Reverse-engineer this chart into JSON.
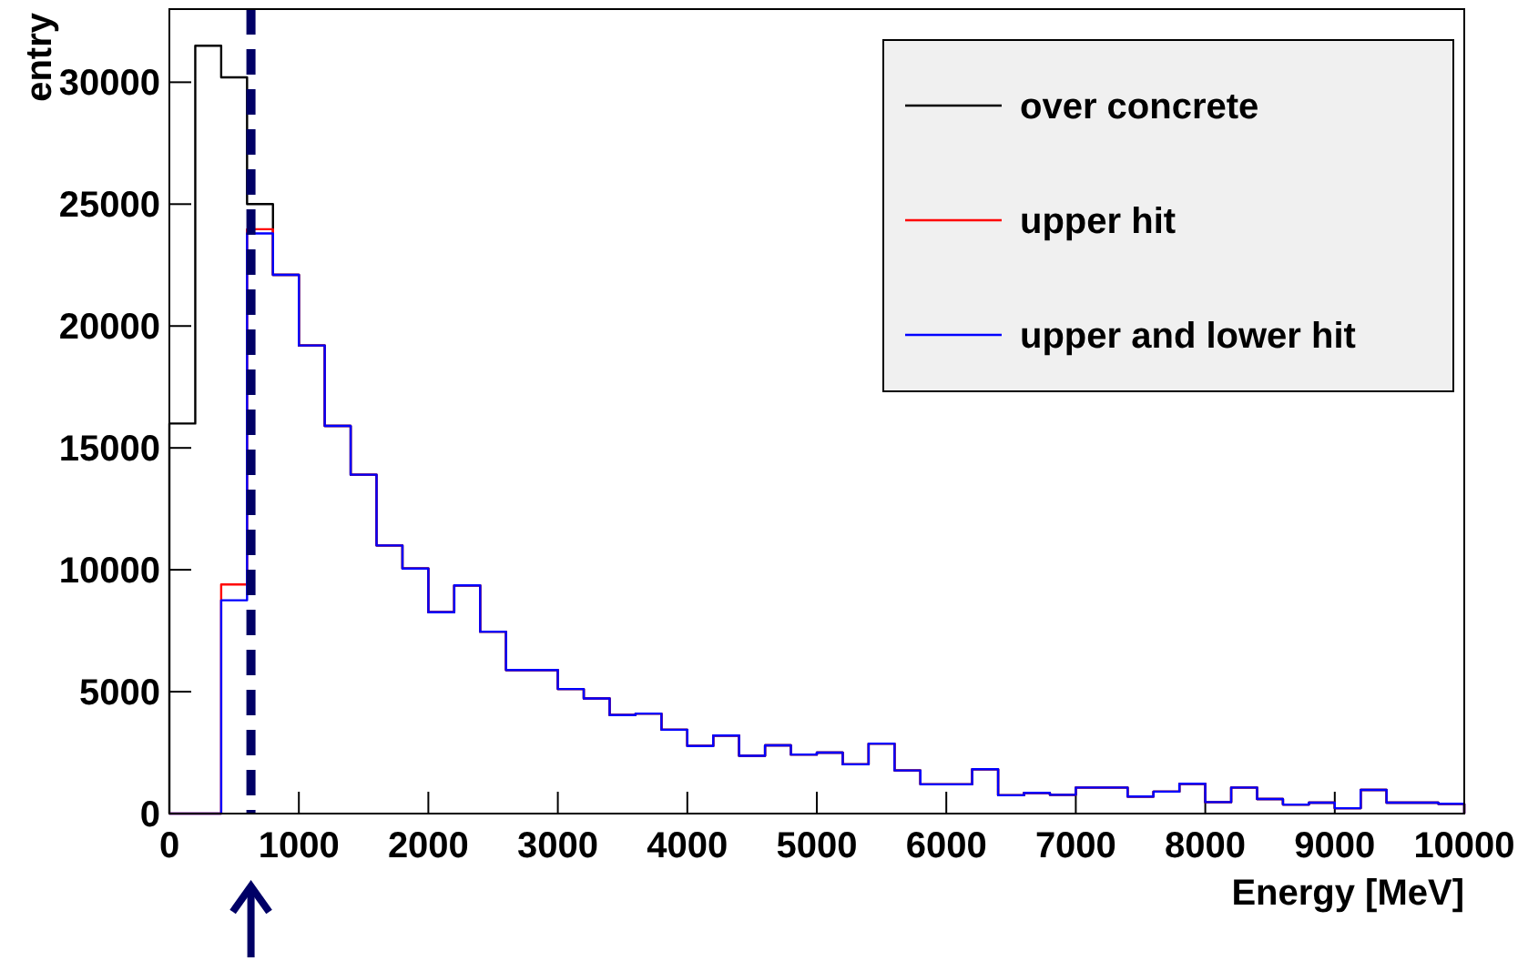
{
  "chart_data": {
    "type": "histogram",
    "xlabel": "Energy [MeV]",
    "ylabel": "entry",
    "bins": [
      0,
      200,
      400,
      600,
      800,
      1000,
      1200,
      1400,
      1600,
      1800,
      2000,
      2200,
      2400,
      2600,
      2800,
      3000,
      3200,
      3400,
      3600,
      3800,
      4000,
      4200,
      4400,
      4600,
      4800,
      5000,
      5200,
      5400,
      5600,
      5800,
      6000,
      6200,
      6400,
      6600,
      6800,
      7000,
      7200,
      7400,
      7600,
      7800,
      8000,
      8200,
      8400,
      8600,
      8800,
      9000,
      9200,
      9400,
      9600,
      9800,
      10000
    ],
    "series": [
      {
        "name": "over concrete",
        "color": "#000000",
        "values": [
          16000,
          31500,
          30200,
          25000,
          22100,
          19200,
          15900,
          13900,
          11000,
          10050,
          8260,
          9360,
          7460,
          5890,
          5890,
          5110,
          4720,
          4040,
          4100,
          3440,
          2770,
          3200,
          2370,
          2800,
          2420,
          2500,
          2020,
          2870,
          1770,
          1200,
          1200,
          1820,
          750,
          850,
          770,
          1070,
          1070,
          700,
          900,
          1220,
          470,
          1070,
          600,
          370,
          450,
          220,
          970,
          450,
          450,
          400
        ]
      },
      {
        "name": "upper hit",
        "color": "#ff0000",
        "values": [
          0,
          0,
          9400,
          23970,
          22100,
          19200,
          15900,
          13900,
          11000,
          10050,
          8260,
          9360,
          7460,
          5890,
          5890,
          5110,
          4720,
          4040,
          4100,
          3440,
          2770,
          3200,
          2370,
          2800,
          2420,
          2500,
          2020,
          2870,
          1770,
          1200,
          1200,
          1820,
          750,
          850,
          770,
          1070,
          1070,
          700,
          900,
          1220,
          470,
          1070,
          600,
          370,
          450,
          220,
          970,
          450,
          450,
          400
        ]
      },
      {
        "name": "upper and lower hit",
        "color": "#0000ff",
        "values": [
          0,
          0,
          8750,
          23800,
          22100,
          19200,
          15900,
          13900,
          11000,
          10050,
          8260,
          9360,
          7460,
          5890,
          5890,
          5110,
          4720,
          4040,
          4100,
          3440,
          2770,
          3200,
          2370,
          2800,
          2420,
          2500,
          2020,
          2870,
          1770,
          1200,
          1200,
          1820,
          750,
          850,
          770,
          1070,
          1070,
          700,
          900,
          1220,
          470,
          1070,
          600,
          370,
          450,
          220,
          970,
          450,
          450,
          400
        ]
      }
    ],
    "xlim": [
      0,
      10000
    ],
    "xticks": [
      0,
      1000,
      2000,
      3000,
      4000,
      5000,
      6000,
      7000,
      8000,
      9000,
      10000
    ],
    "ylim": [
      0,
      33000
    ],
    "yticks": [
      0,
      5000,
      10000,
      15000,
      20000,
      25000,
      30000
    ],
    "ref_lines": [
      {
        "axis": "x",
        "value": 630,
        "color": "#000066",
        "line_style": "dashed"
      }
    ],
    "legend": "top right"
  }
}
